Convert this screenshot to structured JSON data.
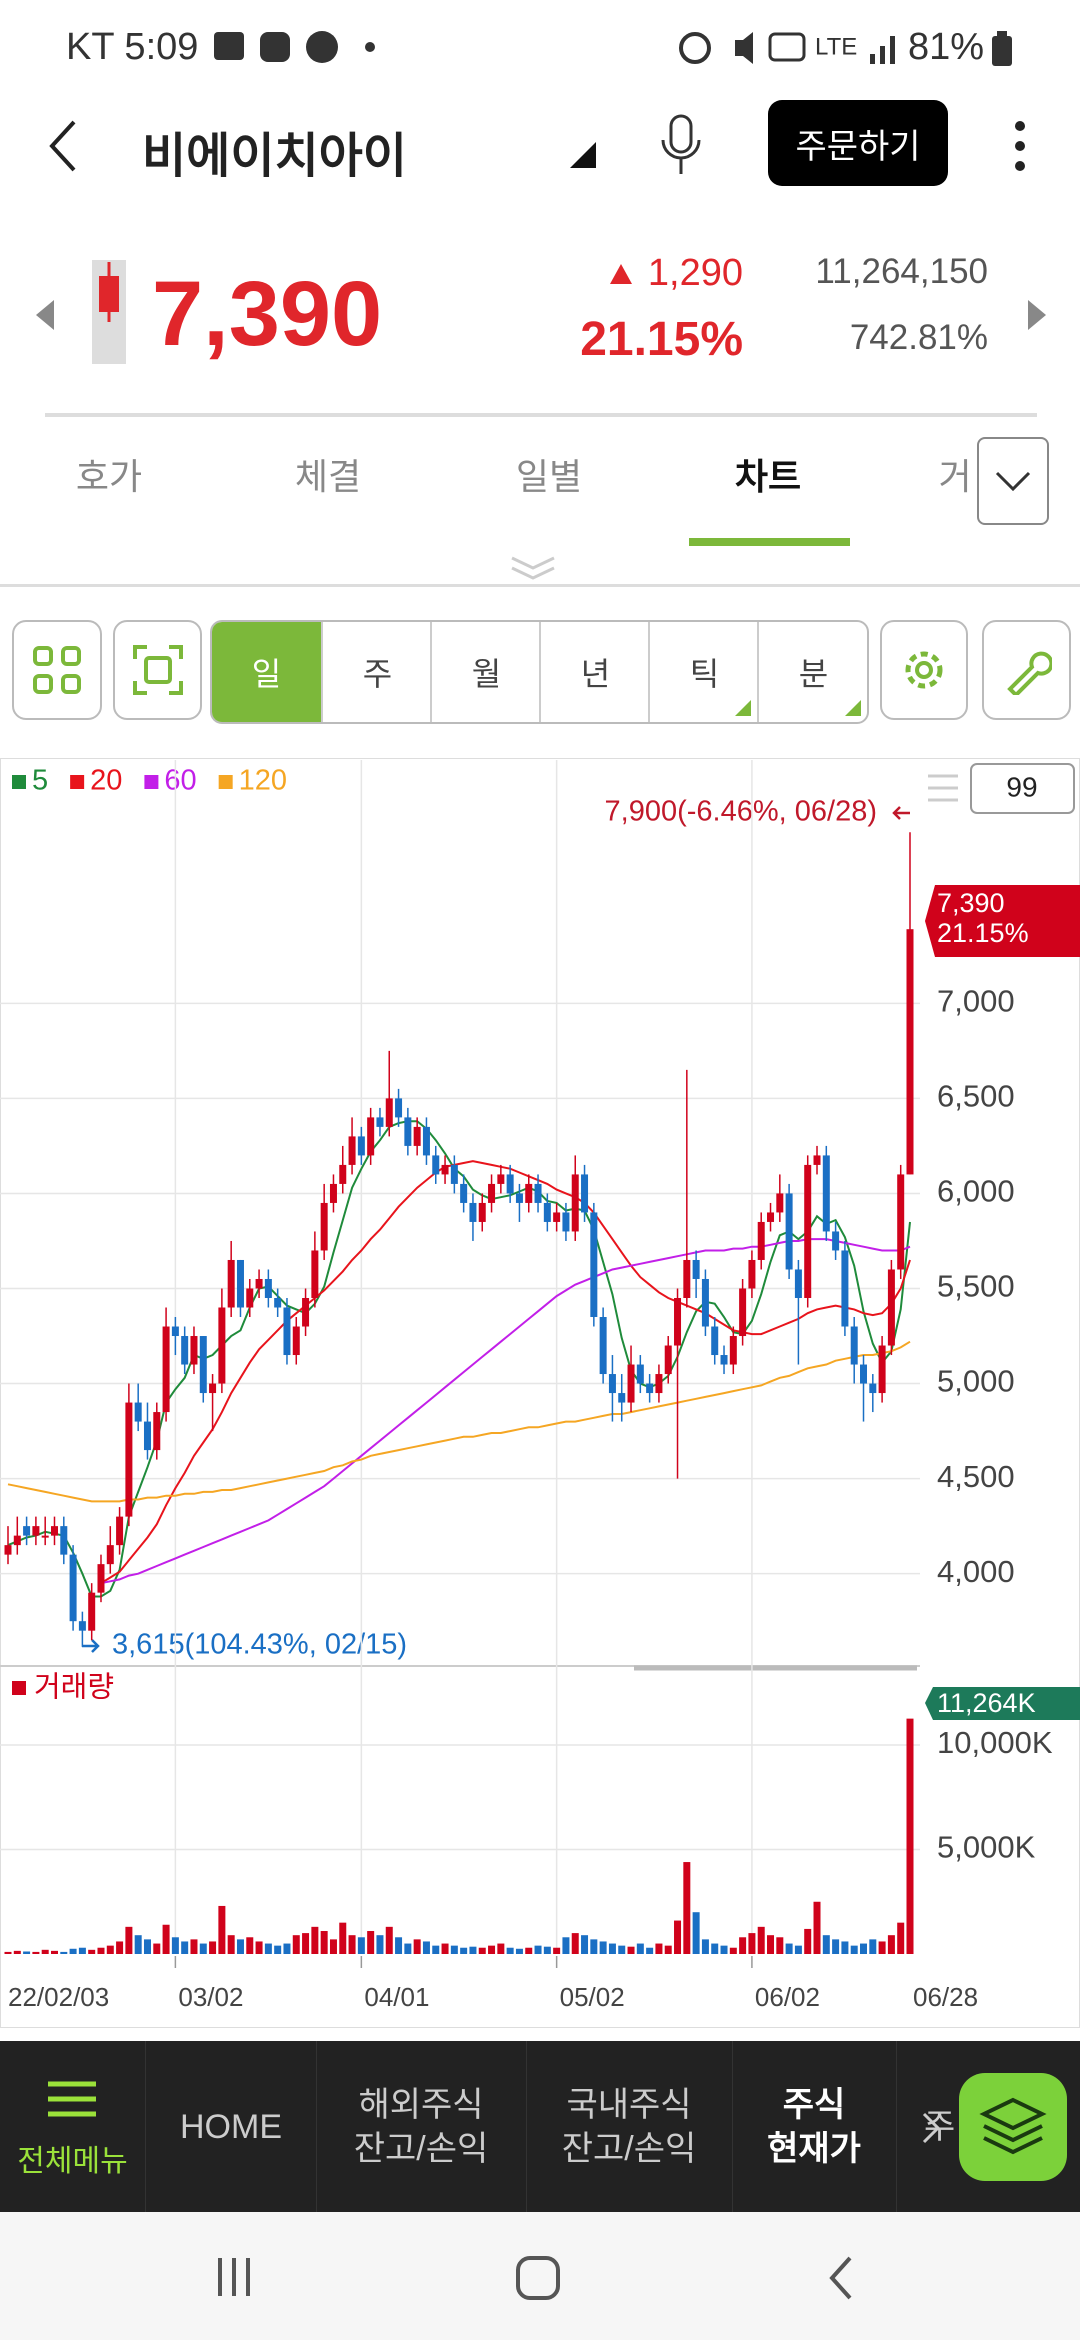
{
  "status": {
    "time": "KT 5:09",
    "battery": "81%"
  },
  "header": {
    "title": "비에이치아이",
    "button": "주문하기"
  },
  "quote": {
    "price": "7,390",
    "change": "1,290",
    "rate": "21.15%",
    "volume": "11,264,150",
    "volume_rate": "742.81%"
  },
  "tabs": [
    "호가",
    "체결",
    "일별",
    "차트",
    "거"
  ],
  "periods": [
    "일",
    "주",
    "월",
    "년",
    "틱",
    "분"
  ],
  "chart_data": {
    "type": "candlestick",
    "categories": [
      "22/02/03",
      null,
      null,
      null,
      null,
      null,
      null,
      null,
      null,
      null,
      null,
      null,
      null,
      null,
      null,
      null,
      null,
      null,
      "03/02",
      null,
      null,
      null,
      null,
      null,
      null,
      null,
      null,
      null,
      null,
      null,
      null,
      null,
      null,
      null,
      null,
      null,
      null,
      null,
      "04/01",
      null,
      null,
      null,
      null,
      null,
      null,
      null,
      null,
      null,
      null,
      null,
      null,
      null,
      null,
      null,
      null,
      null,
      null,
      null,
      null,
      "05/02",
      null,
      null,
      null,
      null,
      null,
      null,
      null,
      null,
      null,
      null,
      null,
      null,
      null,
      null,
      null,
      null,
      null,
      null,
      null,
      null,
      "06/02",
      null,
      null,
      null,
      null,
      null,
      null,
      null,
      null,
      null,
      null,
      null,
      null,
      null,
      null,
      null,
      null,
      "06/28"
    ],
    "open": [
      4100,
      4150,
      4250,
      4200,
      4200,
      4200,
      4250,
      4100,
      3750,
      3700,
      3900,
      4050,
      4150,
      4300,
      4900,
      4800,
      4650,
      4850,
      5300,
      5250,
      5100,
      5250,
      4950,
      5000,
      5400,
      5650,
      5400,
      5500,
      5550,
      5450,
      5400,
      5150,
      5300,
      5450,
      5700,
      5950,
      6050,
      6150,
      6300,
      6200,
      6400,
      6350,
      6500,
      6400,
      6250,
      6350,
      6200,
      6100,
      6150,
      6050,
      5950,
      5850,
      5950,
      6050,
      6100,
      6000,
      5950,
      6050,
      5950,
      5850,
      5900,
      5800,
      6100,
      5900,
      5350,
      5050,
      4950,
      4900,
      5100,
      5000,
      4950,
      5050,
      5200,
      5450,
      5650,
      5550,
      5300,
      5150,
      5100,
      5250,
      5500,
      5650,
      5850,
      5900,
      6000,
      5600,
      5450,
      6150,
      6200,
      5800,
      5700,
      5300,
      5100,
      5000,
      4950,
      5200,
      5600,
      6100
    ],
    "high": [
      4250,
      4300,
      4300,
      4300,
      4300,
      4300,
      4300,
      4150,
      3800,
      3950,
      4100,
      4250,
      4350,
      5000,
      5000,
      4900,
      4900,
      5400,
      5350,
      5300,
      5300,
      5250,
      5050,
      5500,
      5750,
      5650,
      5550,
      5600,
      5600,
      5500,
      5450,
      5350,
      5500,
      5800,
      6050,
      6100,
      6250,
      6400,
      6350,
      6450,
      6450,
      6750,
      6550,
      6450,
      6400,
      6400,
      6250,
      6200,
      6200,
      6100,
      6000,
      6000,
      6100,
      6150,
      6150,
      6050,
      6100,
      6100,
      6000,
      5950,
      5950,
      6200,
      6150,
      5950,
      5400,
      5150,
      5050,
      5200,
      5150,
      5050,
      5100,
      5250,
      5500,
      6650,
      5700,
      5600,
      5350,
      5200,
      5300,
      5550,
      5700,
      5900,
      5950,
      6100,
      6050,
      5650,
      6200,
      6250,
      6250,
      5850,
      5750,
      5350,
      5150,
      5050,
      5250,
      5650,
      6150,
      7900
    ],
    "low": [
      4050,
      4100,
      4150,
      4150,
      4150,
      4150,
      4050,
      3700,
      3615,
      3650,
      3850,
      4000,
      4100,
      4250,
      4750,
      4600,
      4600,
      4800,
      5150,
      5050,
      5050,
      4900,
      4750,
      4950,
      5350,
      5350,
      5350,
      5450,
      5400,
      5350,
      5100,
      5100,
      5250,
      5400,
      5650,
      5900,
      6000,
      6100,
      6150,
      6150,
      6300,
      6300,
      6350,
      6200,
      6200,
      6150,
      6050,
      6050,
      6000,
      5900,
      5750,
      5800,
      5900,
      6000,
      5950,
      5850,
      5900,
      5900,
      5800,
      5800,
      5750,
      5750,
      5850,
      5300,
      5000,
      4800,
      4800,
      4850,
      4950,
      4900,
      4900,
      5000,
      4500,
      5400,
      5450,
      5250,
      5100,
      5050,
      5050,
      5200,
      5450,
      5600,
      5800,
      5850,
      5550,
      5100,
      5400,
      6100,
      5750,
      5650,
      5250,
      5000,
      4800,
      4850,
      4900,
      5150,
      5550,
      6100
    ],
    "close": [
      4150,
      4200,
      4200,
      4250,
      4200,
      4250,
      4100,
      3750,
      3700,
      3900,
      4050,
      4150,
      4300,
      4900,
      4800,
      4650,
      4850,
      5300,
      5250,
      5100,
      5250,
      4950,
      5000,
      5400,
      5650,
      5400,
      5500,
      5550,
      5450,
      5400,
      5150,
      5300,
      5450,
      5700,
      5950,
      6050,
      6150,
      6300,
      6200,
      6400,
      6350,
      6500,
      6400,
      6250,
      6350,
      6200,
      6100,
      6150,
      6050,
      5950,
      5850,
      5950,
      6050,
      6100,
      6000,
      5950,
      6050,
      5950,
      5850,
      5900,
      5800,
      6100,
      5900,
      5350,
      5050,
      4950,
      4900,
      5100,
      5000,
      4950,
      5050,
      5200,
      5450,
      5650,
      5550,
      5300,
      5150,
      5100,
      5250,
      5500,
      5650,
      5850,
      5900,
      6000,
      5600,
      5450,
      6150,
      6200,
      5800,
      5700,
      5300,
      5100,
      5000,
      4950,
      5200,
      5600,
      6100,
      7390
    ],
    "up_color": "#d0021b",
    "down_color": "#1a6fc4",
    "series": [
      {
        "name": "5",
        "color": "#1f8b3b",
        "values": [
          4150,
          4170,
          4190,
          4200,
          4220,
          4210,
          4200,
          4110,
          4000,
          3880,
          3880,
          3910,
          4020,
          4300,
          4430,
          4560,
          4700,
          4900,
          4970,
          5030,
          5150,
          5130,
          5150,
          5200,
          5250,
          5280,
          5400,
          5500,
          5510,
          5460,
          5410,
          5390,
          5370,
          5420,
          5510,
          5690,
          5860,
          6030,
          6130,
          6220,
          6280,
          6350,
          6370,
          6380,
          6380,
          6340,
          6280,
          6210,
          6130,
          6090,
          6020,
          5990,
          5970,
          5980,
          5990,
          6010,
          6030,
          6010,
          5960,
          5950,
          5910,
          5920,
          5910,
          5810,
          5640,
          5470,
          5240,
          5070,
          5000,
          4980,
          5000,
          5040,
          5140,
          5270,
          5380,
          5430,
          5420,
          5350,
          5270,
          5260,
          5330,
          5470,
          5640,
          5780,
          5800,
          5760,
          5800,
          5880,
          5840,
          5860,
          5770,
          5620,
          5380,
          5210,
          5110,
          5170,
          5390,
          5850
        ]
      },
      {
        "name": "20",
        "color": "#e8141c",
        "values": [
          null,
          null,
          null,
          null,
          null,
          null,
          null,
          null,
          null,
          null,
          3950,
          3980,
          4010,
          4070,
          4130,
          4190,
          4260,
          4360,
          4450,
          4530,
          4620,
          4690,
          4760,
          4850,
          4950,
          5030,
          5110,
          5180,
          5230,
          5280,
          5330,
          5370,
          5410,
          5450,
          5490,
          5540,
          5590,
          5650,
          5700,
          5760,
          5810,
          5870,
          5930,
          5980,
          6030,
          6070,
          6110,
          6140,
          6150,
          6160,
          6170,
          6160,
          6150,
          6140,
          6130,
          6110,
          6090,
          6070,
          6050,
          6020,
          6000,
          5980,
          5950,
          5900,
          5830,
          5760,
          5690,
          5620,
          5560,
          5520,
          5480,
          5450,
          5430,
          5410,
          5390,
          5370,
          5340,
          5310,
          5280,
          5270,
          5260,
          5260,
          5280,
          5300,
          5320,
          5340,
          5370,
          5390,
          5400,
          5410,
          5400,
          5390,
          5370,
          5360,
          5370,
          5420,
          5500,
          5650
        ]
      },
      {
        "name": "60",
        "color": "#c21fe8",
        "values": [
          null,
          null,
          null,
          null,
          null,
          null,
          null,
          null,
          null,
          null,
          3950,
          3960,
          3970,
          3990,
          4000,
          4020,
          4040,
          4060,
          4080,
          4100,
          4120,
          4140,
          4160,
          4180,
          4200,
          4220,
          4240,
          4260,
          4280,
          4310,
          4340,
          4370,
          4400,
          4430,
          4460,
          4500,
          4540,
          4580,
          4620,
          4660,
          4700,
          4740,
          4780,
          4820,
          4860,
          4900,
          4940,
          4980,
          5020,
          5060,
          5100,
          5140,
          5180,
          5220,
          5260,
          5300,
          5340,
          5380,
          5420,
          5460,
          5490,
          5520,
          5540,
          5560,
          5580,
          5600,
          5610,
          5620,
          5630,
          5640,
          5650,
          5660,
          5670,
          5680,
          5690,
          5700,
          5700,
          5700,
          5710,
          5710,
          5720,
          5720,
          5730,
          5740,
          5750,
          5750,
          5760,
          5760,
          5760,
          5750,
          5740,
          5730,
          5720,
          5710,
          5700,
          5700,
          5700,
          5720
        ]
      },
      {
        "name": "120",
        "color": "#f5a623",
        "values": [
          4470,
          4460,
          4450,
          4440,
          4430,
          4420,
          4410,
          4400,
          4390,
          4380,
          4380,
          4380,
          4380,
          4390,
          4390,
          4400,
          4400,
          4410,
          4410,
          4420,
          4420,
          4430,
          4430,
          4440,
          4440,
          4450,
          4460,
          4470,
          4480,
          4490,
          4500,
          4510,
          4520,
          4530,
          4540,
          4560,
          4570,
          4590,
          4600,
          4620,
          4630,
          4640,
          4650,
          4660,
          4670,
          4680,
          4690,
          4700,
          4710,
          4720,
          4720,
          4730,
          4740,
          4740,
          4750,
          4760,
          4770,
          4770,
          4780,
          4790,
          4800,
          4800,
          4810,
          4820,
          4830,
          4840,
          4840,
          4850,
          4860,
          4870,
          4880,
          4890,
          4900,
          4910,
          4920,
          4930,
          4940,
          4950,
          4960,
          4970,
          4980,
          4990,
          5010,
          5030,
          5040,
          5060,
          5080,
          5090,
          5100,
          5120,
          5130,
          5140,
          5150,
          5150,
          5160,
          5170,
          5190,
          5220
        ]
      }
    ],
    "ylim": [
      3530,
      8280
    ],
    "yticks": [
      {
        "value": 7000,
        "label": "7,000"
      },
      {
        "value": 6500,
        "label": "6,500"
      },
      {
        "value": 6000,
        "label": "6,000"
      },
      {
        "value": 5500,
        "label": "5,500"
      },
      {
        "value": 5000,
        "label": "5,000"
      },
      {
        "value": 4500,
        "label": "4,500"
      },
      {
        "value": 4000,
        "label": "4,000"
      }
    ],
    "grid": true,
    "annotations": [
      "7,900(-6.46%, 06/28)",
      "3,615(104.43%, 02/15)",
      "7,390",
      "21.15%"
    ],
    "zoom": "99",
    "volume": {
      "title": "거래량",
      "values": [
        100,
        150,
        120,
        100,
        200,
        150,
        100,
        250,
        300,
        200,
        300,
        400,
        600,
        1300,
        900,
        700,
        500,
        1400,
        800,
        600,
        700,
        500,
        600,
        2300,
        900,
        700,
        800,
        600,
        500,
        400,
        500,
        900,
        1000,
        1300,
        1100,
        700,
        1500,
        900,
        800,
        1100,
        900,
        1300,
        800,
        500,
        700,
        600,
        400,
        500,
        400,
        300,
        350,
        300,
        400,
        500,
        300,
        250,
        300,
        400,
        350,
        300,
        800,
        1000,
        900,
        700,
        600,
        500,
        400,
        350,
        500,
        300,
        500,
        400,
        1600,
        4400,
        2000,
        700,
        500,
        400,
        300,
        800,
        1000,
        1300,
        900,
        800,
        500,
        400,
        1200,
        2500,
        900,
        700,
        600,
        400,
        500,
        700,
        600,
        900,
        1500,
        11264
      ],
      "last_label": "11,264K",
      "ylim": [
        0,
        13400
      ],
      "yticks": [
        {
          "value": 10000,
          "label": "10,000K"
        },
        {
          "value": 5000,
          "label": "5,000K"
        }
      ]
    }
  },
  "nav": [
    {
      "lines": [
        "전체메뉴"
      ]
    },
    {
      "lines": [
        "HOME"
      ]
    },
    {
      "lines": [
        "해외주식",
        "잔고/손익"
      ]
    },
    {
      "lines": [
        "국내주식",
        "잔고/손익"
      ]
    },
    {
      "lines": [
        "주식",
        "현재가"
      ]
    },
    {
      "lines": [
        "주"
      ]
    }
  ]
}
